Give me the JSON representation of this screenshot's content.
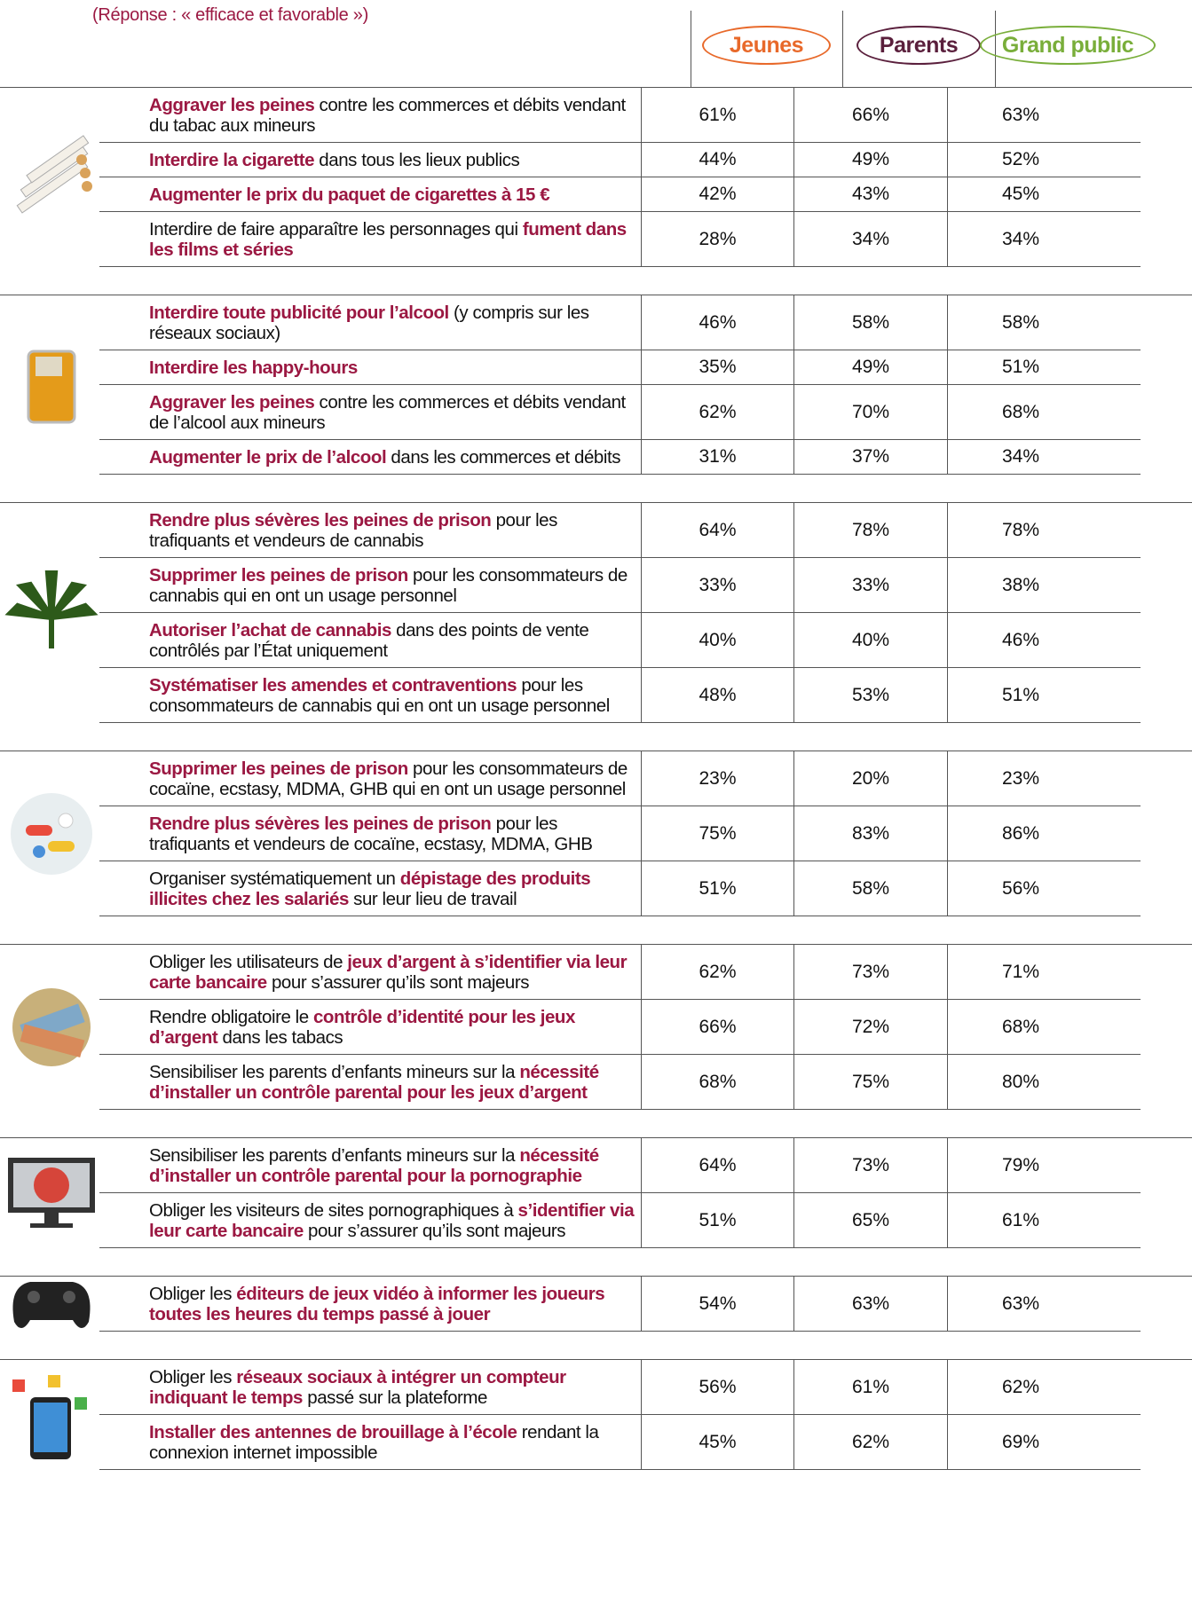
{
  "header": {
    "note": "(Réponse : « efficace et favorable »)"
  },
  "columns": [
    {
      "label": "Jeunes",
      "color": "#e8692a"
    },
    {
      "label": "Parents",
      "color": "#5a1f3c"
    },
    {
      "label": "Grand public",
      "color": "#79ae3a"
    }
  ],
  "groups": [
    {
      "rows": [
        {
          "parts": [
            {
              "text": "Aggraver les peines",
              "strong": true
            },
            {
              "text": " contre les commerces et débits vendant du tabac aux mineurs",
              "strong": false
            }
          ],
          "values": [
            "61%",
            "66%",
            "63%"
          ]
        },
        {
          "parts": [
            {
              "text": "Interdire la cigarette",
              "strong": true
            },
            {
              "text": " dans tous les lieux publics",
              "strong": false
            }
          ],
          "values": [
            "44%",
            "49%",
            "52%"
          ]
        },
        {
          "parts": [
            {
              "text": "Augmenter le prix du paquet de cigarettes à 15 €",
              "strong": true
            }
          ],
          "values": [
            "42%",
            "43%",
            "45%"
          ]
        },
        {
          "parts": [
            {
              "text": "Interdire de faire apparaître les personnages qui ",
              "strong": false
            },
            {
              "text": "fument dans les films et séries",
              "strong": true
            }
          ],
          "values": [
            "28%",
            "34%",
            "34%"
          ]
        }
      ]
    },
    {
      "rows": [
        {
          "parts": [
            {
              "text": "Interdire toute publicité pour l’alcool",
              "strong": true
            },
            {
              "text": " (y compris sur les réseaux sociaux)",
              "strong": false
            }
          ],
          "values": [
            "46%",
            "58%",
            "58%"
          ]
        },
        {
          "parts": [
            {
              "text": "Interdire les happy-hours",
              "strong": true
            }
          ],
          "values": [
            "35%",
            "49%",
            "51%"
          ]
        },
        {
          "parts": [
            {
              "text": "Aggraver les peines",
              "strong": true
            },
            {
              "text": " contre les commerces et débits vendant de l’alcool aux mineurs",
              "strong": false
            }
          ],
          "values": [
            "62%",
            "70%",
            "68%"
          ]
        },
        {
          "parts": [
            {
              "text": "Augmenter le prix de l’alcool",
              "strong": true
            },
            {
              "text": " dans les commerces et débits",
              "strong": false
            }
          ],
          "values": [
            "31%",
            "37%",
            "34%"
          ]
        }
      ]
    },
    {
      "rows": [
        {
          "parts": [
            {
              "text": "Rendre plus sévères les peines de prison",
              "strong": true
            },
            {
              "text": " pour les trafiquants et vendeurs de cannabis",
              "strong": false
            }
          ],
          "values": [
            "64%",
            "78%",
            "78%"
          ]
        },
        {
          "parts": [
            {
              "text": "Supprimer les peines de prison",
              "strong": true
            },
            {
              "text": " pour les consommateurs de cannabis qui en ont un usage personnel",
              "strong": false
            }
          ],
          "values": [
            "33%",
            "33%",
            "38%"
          ]
        },
        {
          "parts": [
            {
              "text": "Autoriser l’achat de cannabis",
              "strong": true
            },
            {
              "text": " dans des points de vente contrôlés par l’État uniquement",
              "strong": false
            }
          ],
          "values": [
            "40%",
            "40%",
            "46%"
          ]
        },
        {
          "parts": [
            {
              "text": "Systématiser les amendes et contraventions",
              "strong": true
            },
            {
              "text": " pour les consommateurs de cannabis qui en ont un usage personnel",
              "strong": false
            }
          ],
          "values": [
            "48%",
            "53%",
            "51%"
          ]
        }
      ]
    },
    {
      "rows": [
        {
          "parts": [
            {
              "text": "Supprimer les peines de prison",
              "strong": true
            },
            {
              "text": " pour les consommateurs de cocaïne, ecstasy, MDMA, GHB qui en ont un usage personnel",
              "strong": false
            }
          ],
          "values": [
            "23%",
            "20%",
            "23%"
          ]
        },
        {
          "parts": [
            {
              "text": "Rendre plus sévères les peines de prison",
              "strong": true
            },
            {
              "text": " pour les trafiquants et vendeurs de cocaïne, ecstasy, MDMA, GHB",
              "strong": false
            }
          ],
          "values": [
            "75%",
            "83%",
            "86%"
          ]
        },
        {
          "parts": [
            {
              "text": "Organiser systématiquement un ",
              "strong": false
            },
            {
              "text": "dépistage des produits illicites chez les salariés",
              "strong": true
            },
            {
              "text": " sur leur lieu de travail",
              "strong": false
            }
          ],
          "values": [
            "51%",
            "58%",
            "56%"
          ]
        }
      ]
    },
    {
      "rows": [
        {
          "parts": [
            {
              "text": "Obliger les utilisateurs de ",
              "strong": false
            },
            {
              "text": "jeux d’argent à s’identifier via leur carte bancaire",
              "strong": true
            },
            {
              "text": " pour s’assurer qu’ils sont majeurs",
              "strong": false
            }
          ],
          "values": [
            "62%",
            "73%",
            "71%"
          ]
        },
        {
          "parts": [
            {
              "text": "Rendre obligatoire le ",
              "strong": false
            },
            {
              "text": "contrôle d’identité pour les jeux d’argent",
              "strong": true
            },
            {
              "text": " dans les tabacs",
              "strong": false
            }
          ],
          "values": [
            "66%",
            "72%",
            "68%"
          ]
        },
        {
          "parts": [
            {
              "text": "Sensibiliser les parents d’enfants mineurs sur la ",
              "strong": false
            },
            {
              "text": "nécessité d’installer un contrôle parental pour les jeux d’argent",
              "strong": true
            }
          ],
          "values": [
            "68%",
            "75%",
            "80%"
          ]
        }
      ]
    },
    {
      "rows": [
        {
          "parts": [
            {
              "text": "Sensibiliser les parents d’enfants mineurs sur la ",
              "strong": false
            },
            {
              "text": "nécessité d’installer un contrôle parental pour la pornographie",
              "strong": true
            }
          ],
          "values": [
            "64%",
            "73%",
            "79%"
          ]
        },
        {
          "parts": [
            {
              "text": "Obliger les visiteurs de sites pornographiques à ",
              "strong": false
            },
            {
              "text": "s’identifier via leur carte bancaire",
              "strong": true
            },
            {
              "text": " pour s’assurer qu’ils sont majeurs",
              "strong": false
            }
          ],
          "values": [
            "51%",
            "65%",
            "61%"
          ]
        }
      ]
    },
    {
      "rows": [
        {
          "parts": [
            {
              "text": "Obliger les ",
              "strong": false
            },
            {
              "text": "éditeurs de jeux vidéo à informer les joueurs toutes les heures du temps passé à jouer",
              "strong": true
            }
          ],
          "values": [
            "54%",
            "63%",
            "63%"
          ]
        }
      ]
    },
    {
      "rows": [
        {
          "parts": [
            {
              "text": "Obliger les ",
              "strong": false
            },
            {
              "text": "réseaux sociaux à intégrer un compteur indiquant le temps",
              "strong": true
            },
            {
              "text": " passé sur la plateforme",
              "strong": false
            }
          ],
          "values": [
            "56%",
            "61%",
            "62%"
          ]
        },
        {
          "parts": [
            {
              "text": "Installer des antennes de brouillage à l’école",
              "strong": true
            },
            {
              "text": " rendant la connexion internet impossible",
              "strong": false
            }
          ],
          "values": [
            "45%",
            "62%",
            "69%"
          ]
        }
      ]
    }
  ]
}
